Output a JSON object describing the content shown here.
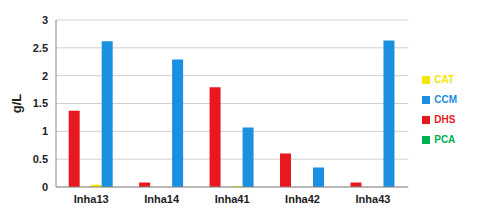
{
  "chart_data": {
    "type": "bar",
    "y_label": "g/L",
    "categories": [
      "Inha13",
      "Inha14",
      "Inha41",
      "Inha42",
      "Inha43"
    ],
    "series": [
      {
        "name": "DHS",
        "color": "#e8181e",
        "values": [
          1.37,
          0.08,
          1.79,
          0.6,
          0.08
        ]
      },
      {
        "name": "PCA",
        "color": "#00b050",
        "values": [
          0,
          0,
          0,
          0,
          0
        ]
      },
      {
        "name": "CAT",
        "color": "#f5e600",
        "values": [
          0.04,
          0,
          0.02,
          0,
          0
        ]
      },
      {
        "name": "CCM",
        "color": "#1b8fe0",
        "values": [
          2.62,
          2.29,
          1.07,
          0.35,
          2.63
        ]
      }
    ],
    "ylim": [
      0,
      3
    ],
    "yticks": [
      0,
      0.5,
      1,
      1.5,
      2,
      2.5,
      3
    ],
    "grid": true,
    "legend": "right"
  }
}
